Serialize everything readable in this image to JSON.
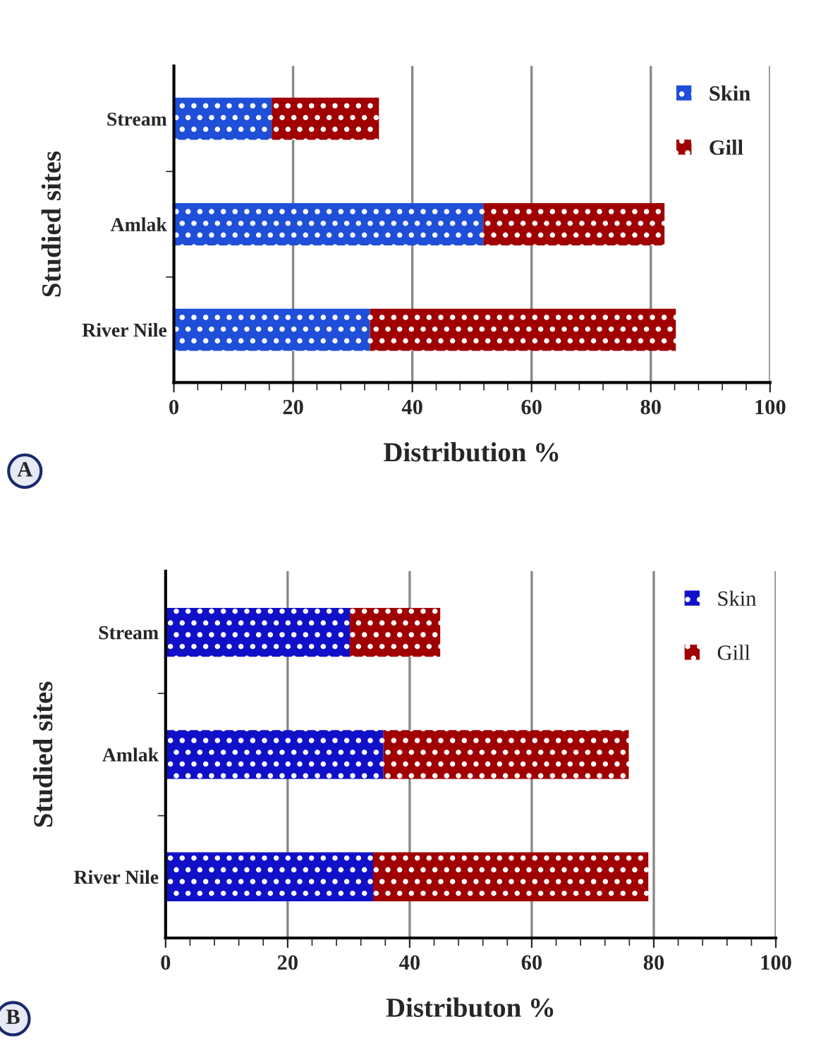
{
  "chart_data": [
    {
      "type": "bar",
      "orientation": "horizontal",
      "stacked": true,
      "categories": [
        "Stream",
        "Amlak",
        "River Nile"
      ],
      "xlabel": "Distribution %",
      "ylabel": "Studied sites",
      "xlim": [
        0,
        100
      ],
      "xticks": [
        0,
        20,
        40,
        60,
        80,
        100
      ],
      "grid": "x",
      "legend": "top right",
      "annotations": [
        "A"
      ],
      "series": [
        {
          "name": "Skin",
          "color": "#1f4fd8",
          "values": [
            16.4,
            51.9,
            32.9
          ]
        },
        {
          "name": "Gill",
          "color": "#a00000",
          "values": [
            18.0,
            30.4,
            51.3
          ]
        }
      ]
    },
    {
      "type": "bar",
      "orientation": "horizontal",
      "stacked": true,
      "categories": [
        "Stream",
        "Amlak",
        "River Nile"
      ],
      "xlabel": "Distributon %",
      "ylabel": "Studied sites",
      "xlim": [
        0,
        100
      ],
      "xticks": [
        0,
        20,
        40,
        60,
        80,
        100
      ],
      "grid": "x",
      "legend": "top right",
      "annotations": [
        "B"
      ],
      "series": [
        {
          "name": "Skin",
          "color": "#1010c8",
          "values": [
            30.2,
            35.7,
            34.0
          ]
        },
        {
          "name": "Gill",
          "color": "#a00000",
          "values": [
            14.8,
            40.2,
            45.1
          ]
        }
      ]
    }
  ]
}
